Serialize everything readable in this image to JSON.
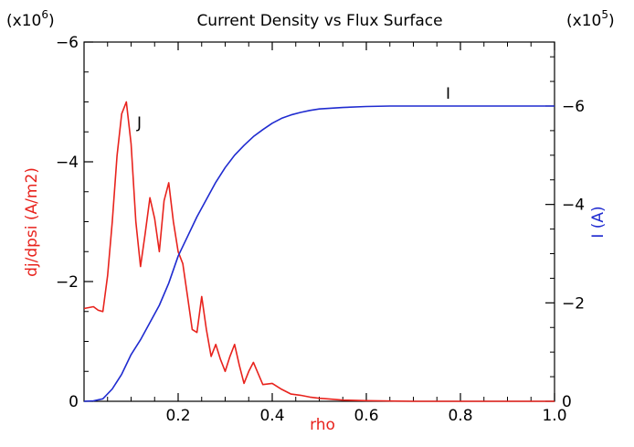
{
  "chart_data": {
    "type": "line",
    "title": "Current Density vs Flux Surface",
    "xlabel": "rho",
    "xlim": [
      0,
      1.0
    ],
    "x_ticks": [
      "0.2",
      "0.4",
      "0.6",
      "0.8",
      "1.0"
    ],
    "x_tick_values": [
      0.2,
      0.4,
      0.6,
      0.8,
      1.0
    ],
    "left_axis": {
      "label": "dj/dpsi (A/m2)",
      "multiplier_text": "(x10",
      "multiplier_exp": "6",
      "ylim": [
        0,
        -6
      ],
      "ticks": [
        "0",
        "−2",
        "−4",
        "−6"
      ],
      "tick_values": [
        0,
        -2,
        -4,
        -6
      ],
      "color": "#e8231d"
    },
    "right_axis": {
      "label": "I (A)",
      "multiplier_text": "(x10",
      "multiplier_exp": "5",
      "ylim": [
        0,
        -7.3
      ],
      "ticks": [
        "0",
        "−2",
        "−4",
        "−6"
      ],
      "tick_values": [
        0,
        -2,
        -4,
        -6
      ],
      "color": "#1f2bd0"
    },
    "series": [
      {
        "name": "J",
        "axis": "left",
        "color": "#e8231d",
        "x": [
          0,
          0.02,
          0.03,
          0.04,
          0.05,
          0.06,
          0.07,
          0.08,
          0.09,
          0.1,
          0.11,
          0.12,
          0.13,
          0.14,
          0.15,
          0.16,
          0.17,
          0.18,
          0.19,
          0.2,
          0.21,
          0.22,
          0.23,
          0.24,
          0.25,
          0.26,
          0.27,
          0.28,
          0.29,
          0.3,
          0.31,
          0.32,
          0.33,
          0.34,
          0.35,
          0.36,
          0.38,
          0.4,
          0.42,
          0.44,
          0.46,
          0.48,
          0.5,
          0.52,
          0.55,
          0.6,
          0.7,
          0.8,
          0.9,
          1.0
        ],
        "y": [
          -1.55,
          -1.58,
          -1.52,
          -1.5,
          -2.1,
          -3.0,
          -4.1,
          -4.8,
          -5.0,
          -4.3,
          -3.0,
          -2.25,
          -2.8,
          -3.4,
          -3.05,
          -2.5,
          -3.35,
          -3.65,
          -3.0,
          -2.5,
          -2.3,
          -1.75,
          -1.2,
          -1.15,
          -1.75,
          -1.2,
          -0.75,
          -0.95,
          -0.7,
          -0.5,
          -0.75,
          -0.95,
          -0.6,
          -0.3,
          -0.5,
          -0.65,
          -0.28,
          -0.3,
          -0.2,
          -0.12,
          -0.1,
          -0.07,
          -0.05,
          -0.04,
          -0.02,
          -0.01,
          0,
          0,
          0,
          0
        ]
      },
      {
        "name": "I",
        "axis": "right",
        "color": "#1f2bd0",
        "x": [
          0,
          0.02,
          0.04,
          0.06,
          0.08,
          0.1,
          0.12,
          0.14,
          0.16,
          0.18,
          0.2,
          0.22,
          0.24,
          0.26,
          0.28,
          0.3,
          0.32,
          0.34,
          0.36,
          0.38,
          0.4,
          0.42,
          0.44,
          0.46,
          0.48,
          0.5,
          0.55,
          0.6,
          0.65,
          0.7,
          0.8,
          0.9,
          1.0
        ],
        "y": [
          0,
          -0.01,
          -0.05,
          -0.25,
          -0.55,
          -0.95,
          -1.25,
          -1.6,
          -1.95,
          -2.4,
          -2.95,
          -3.35,
          -3.75,
          -4.1,
          -4.45,
          -4.75,
          -5.0,
          -5.2,
          -5.38,
          -5.52,
          -5.65,
          -5.75,
          -5.82,
          -5.87,
          -5.91,
          -5.94,
          -5.97,
          -5.99,
          -6.0,
          -6.0,
          -6.0,
          -6.0,
          -6.0
        ]
      }
    ],
    "annotations": [
      {
        "text": "J",
        "color": "#000000"
      },
      {
        "text": "I",
        "color": "#000000"
      }
    ]
  }
}
